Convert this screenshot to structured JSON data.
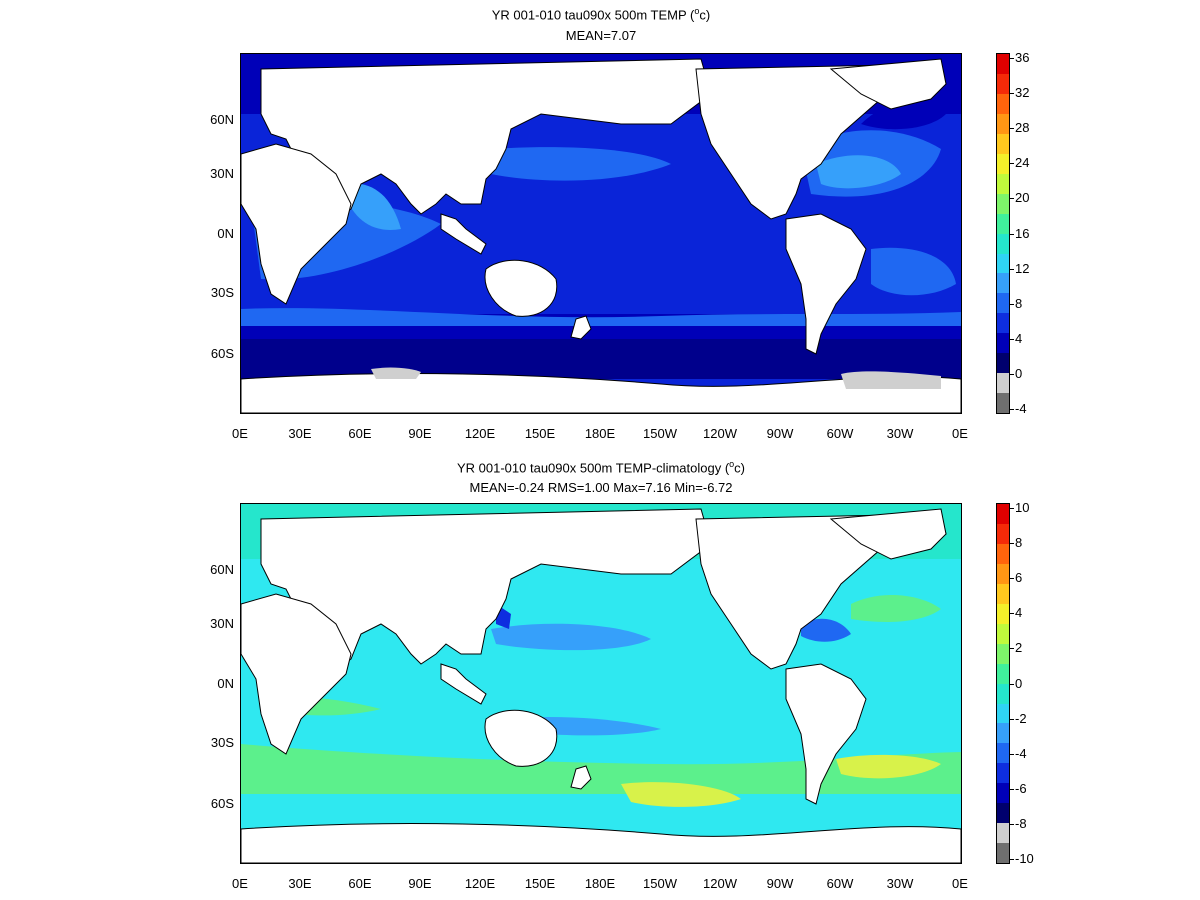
{
  "panel_top": {
    "title": "YR 001-010 tau090x 500m TEMP (",
    "title_sup": "o",
    "title_unit": "c)",
    "subtitle": "MEAN=7.07",
    "lat_labels": [
      "60N",
      "30N",
      "0N",
      "30S",
      "60S"
    ],
    "lon_labels": [
      "0E",
      "30E",
      "60E",
      "90E",
      "120E",
      "150E",
      "180E",
      "150W",
      "120W",
      "90W",
      "60W",
      "30W",
      "0E"
    ],
    "colorbar": {
      "labels": [
        "36",
        "32",
        "28",
        "24",
        "20",
        "16",
        "12",
        "8",
        "4",
        "0",
        "-4"
      ],
      "colors": [
        "#6f6f6f",
        "#cfcfcf",
        "#00006e",
        "#0000b8",
        "#0e2ee0",
        "#1f68f2",
        "#36a0fa",
        "#2fd4f4",
        "#25e6cc",
        "#40f09c",
        "#7ef56a",
        "#c0fa3c",
        "#f4f02a",
        "#ffc81e",
        "#ff9614",
        "#ff640c",
        "#f52a08",
        "#e00000"
      ]
    }
  },
  "panel_bottom": {
    "title": "YR 001-010 tau090x 500m TEMP-climatology (",
    "title_sup": "o",
    "title_unit": "c)",
    "subtitle": "MEAN=-0.24   RMS=1.00   Max=7.16   Min=-6.72",
    "lat_labels": [
      "60N",
      "30N",
      "0N",
      "30S",
      "60S"
    ],
    "lon_labels": [
      "0E",
      "30E",
      "60E",
      "90E",
      "120E",
      "150E",
      "180E",
      "150W",
      "120W",
      "90W",
      "60W",
      "30W",
      "0E"
    ],
    "colorbar": {
      "labels": [
        "10",
        "8",
        "6",
        "4",
        "2",
        "0",
        "-2",
        "-4",
        "-6",
        "-8",
        "-10"
      ],
      "colors": [
        "#6f6f6f",
        "#cfcfcf",
        "#00006e",
        "#0000b8",
        "#0e2ee0",
        "#1f68f2",
        "#36a0fa",
        "#2fd4f4",
        "#25e6cc",
        "#40f09c",
        "#7ef56a",
        "#c0fa3c",
        "#f4f02a",
        "#ffc81e",
        "#ff9614",
        "#ff640c",
        "#f52a08",
        "#e00000"
      ]
    }
  },
  "colors": {
    "deep_blue": "#00008c",
    "mid_blue": "#0a24d8",
    "light_blue": "#1f68f2",
    "sky": "#36a0fa",
    "cyan": "#2fe8f0",
    "aqua": "#25e6cc",
    "green": "#5cf08c",
    "yellow": "#d8f24a",
    "land": "#ffffff",
    "ice": "#cfcfcf"
  }
}
